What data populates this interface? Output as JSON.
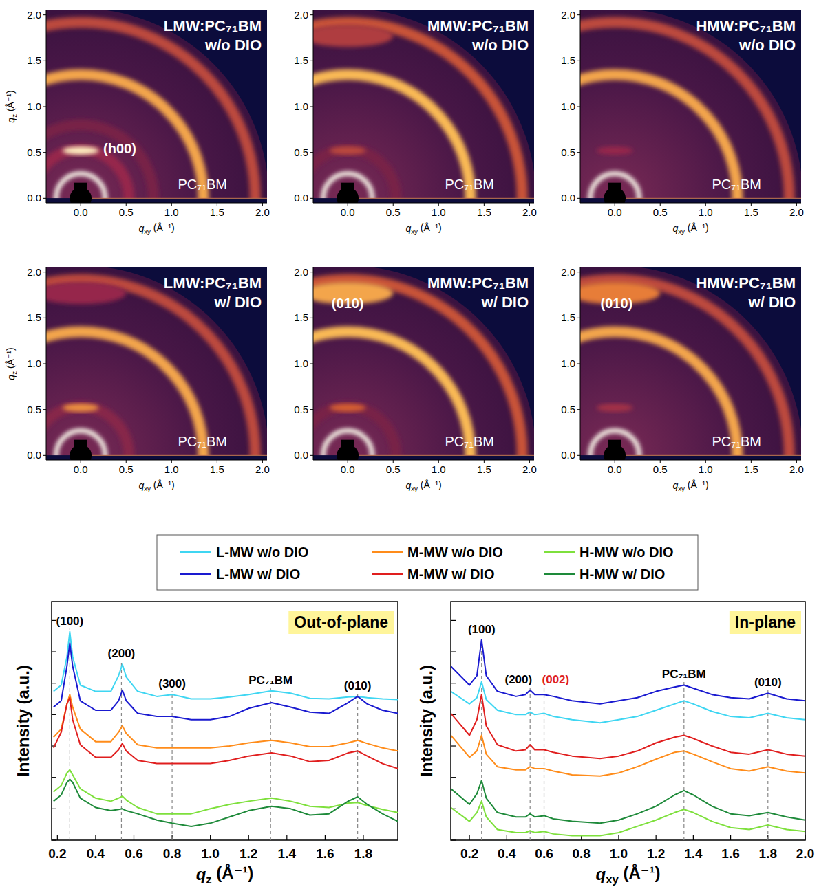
{
  "chart_data": [
    {
      "type": "image",
      "title": "LMW:PC₇₁BM w/o DIO",
      "xlabel": "qxy (Å⁻¹)",
      "ylabel": "qz (Å⁻¹)",
      "xlim": [
        -0.38,
        2.05
      ],
      "ylim": [
        -0.05,
        2.05
      ],
      "xticks": [
        {
          "value": 0,
          "label": "0.0"
        },
        0.5,
        {
          "value": 1,
          "label": "1.0"
        },
        1.5,
        {
          "value": 2,
          "label": "2.0"
        }
      ],
      "yticks": [
        {
          "value": 0,
          "label": "0.0"
        },
        0.5,
        {
          "value": 1,
          "label": "1.0"
        },
        1.5,
        {
          "value": 2,
          "label": "2.0"
        }
      ],
      "rings": [
        {
          "q": 0.27,
          "intensity": 1.0
        },
        {
          "q": 0.53,
          "intensity": 0.3
        },
        {
          "q": 0.8,
          "intensity": 0.2
        },
        {
          "q": 1.35,
          "intensity": 0.75
        },
        {
          "q": 1.92,
          "intensity": 0.45
        }
      ],
      "spots": [
        {
          "q": 0.52,
          "intensity": 0.95
        }
      ],
      "annotations": [
        {
          "text": "(h00)",
          "x": 0.43,
          "y": 0.54
        },
        {
          "text": "PC₇₁BM",
          "x": 1.34,
          "y": 0.15
        }
      ]
    },
    {
      "type": "image",
      "title": "MMW:PC₇₁BM w/o DIO",
      "xlabel": "qxy (Å⁻¹)",
      "xlim": [
        -0.38,
        2.05
      ],
      "ylim": [
        -0.05,
        2.05
      ],
      "xticks": [
        {
          "value": 0,
          "label": "0.0"
        },
        0.5,
        {
          "value": 1,
          "label": "1.0"
        },
        1.5,
        {
          "value": 2,
          "label": "2.0"
        }
      ],
      "yticks": [
        {
          "value": 0,
          "label": "0.0"
        },
        0.5,
        {
          "value": 1,
          "label": "1.0"
        },
        1.5,
        {
          "value": 2,
          "label": "2.0"
        }
      ],
      "rings": [
        {
          "q": 0.27,
          "intensity": 1.0
        },
        {
          "q": 0.53,
          "intensity": 0.2
        },
        {
          "q": 1.35,
          "intensity": 0.8
        },
        {
          "q": 1.92,
          "intensity": 0.5
        }
      ],
      "spots": [
        {
          "q": 0.52,
          "intensity": 0.45
        },
        {
          "q": 1.77,
          "intensity": 0.4
        }
      ],
      "annotations": [
        {
          "text": "PC₇₁BM",
          "x": 1.34,
          "y": 0.15
        }
      ]
    },
    {
      "type": "image",
      "title": "HMW:PC₇₁BM w/o DIO",
      "xlabel": "qxy (Å⁻¹)",
      "xlim": [
        -0.38,
        2.05
      ],
      "ylim": [
        -0.05,
        2.05
      ],
      "xticks": [
        {
          "value": 0,
          "label": "0.0"
        },
        0.5,
        {
          "value": 1,
          "label": "1.0"
        },
        1.5,
        {
          "value": 2,
          "label": "2.0"
        }
      ],
      "yticks": [
        {
          "value": 0,
          "label": "0.0"
        },
        0.5,
        {
          "value": 1,
          "label": "1.0"
        },
        1.5,
        {
          "value": 2,
          "label": "2.0"
        }
      ],
      "rings": [
        {
          "q": 0.27,
          "intensity": 1.0
        },
        {
          "q": 1.35,
          "intensity": 0.75
        },
        {
          "q": 1.92,
          "intensity": 0.45
        }
      ],
      "spots": [
        {
          "q": 0.52,
          "intensity": 0.3
        }
      ],
      "annotations": [
        {
          "text": "PC₇₁BM",
          "x": 1.34,
          "y": 0.15
        }
      ]
    },
    {
      "type": "image",
      "title": "LMW:PC₇₁BM w/ DIO",
      "xlabel": "qxy (Å⁻¹)",
      "ylabel": "qz (Å⁻¹)",
      "xlim": [
        -0.38,
        2.05
      ],
      "ylim": [
        -0.05,
        2.05
      ],
      "xticks": [
        {
          "value": 0,
          "label": "0.0"
        },
        0.5,
        {
          "value": 1,
          "label": "1.0"
        },
        1.5,
        {
          "value": 2,
          "label": "2.0"
        }
      ],
      "yticks": [
        {
          "value": 0,
          "label": "0.0"
        },
        0.5,
        {
          "value": 1,
          "label": "1.0"
        },
        1.5,
        {
          "value": 2,
          "label": "2.0"
        }
      ],
      "rings": [
        {
          "q": 0.27,
          "intensity": 1.0
        },
        {
          "q": 0.53,
          "intensity": 0.25
        },
        {
          "q": 1.35,
          "intensity": 0.75
        },
        {
          "q": 1.92,
          "intensity": 0.45
        }
      ],
      "spots": [
        {
          "q": 0.52,
          "intensity": 0.7
        },
        {
          "q": 1.77,
          "intensity": 0.3
        }
      ],
      "annotations": [
        {
          "text": "PC₇₁BM",
          "x": 1.34,
          "y": 0.15
        }
      ]
    },
    {
      "type": "image",
      "title": "MMW:PC₇₁BM w/ DIO",
      "xlabel": "qxy (Å⁻¹)",
      "xlim": [
        -0.38,
        2.05
      ],
      "ylim": [
        -0.05,
        2.05
      ],
      "xticks": [
        {
          "value": 0,
          "label": "0.0"
        },
        0.5,
        {
          "value": 1,
          "label": "1.0"
        },
        1.5,
        {
          "value": 2,
          "label": "2.0"
        }
      ],
      "yticks": [
        {
          "value": 0,
          "label": "0.0"
        },
        0.5,
        {
          "value": 1,
          "label": "1.0"
        },
        1.5,
        {
          "value": 2,
          "label": "2.0"
        }
      ],
      "rings": [
        {
          "q": 0.27,
          "intensity": 1.0
        },
        {
          "q": 0.53,
          "intensity": 0.2
        },
        {
          "q": 1.35,
          "intensity": 0.8
        },
        {
          "q": 1.92,
          "intensity": 0.5
        }
      ],
      "spots": [
        {
          "q": 0.52,
          "intensity": 0.55
        },
        {
          "q": 1.77,
          "intensity": 0.75
        }
      ],
      "annotations": [
        {
          "text": "(010)",
          "x": 0.0,
          "y": 1.66
        },
        {
          "text": "PC₇₁BM",
          "x": 1.34,
          "y": 0.15
        }
      ]
    },
    {
      "type": "image",
      "title": "HMW:PC₇₁BM w/ DIO",
      "xlabel": "qxy (Å⁻¹)",
      "xlim": [
        -0.38,
        2.05
      ],
      "ylim": [
        -0.05,
        2.05
      ],
      "xticks": [
        {
          "value": 0,
          "label": "0.0"
        },
        0.5,
        {
          "value": 1,
          "label": "1.0"
        },
        1.5,
        {
          "value": 2,
          "label": "2.0"
        }
      ],
      "yticks": [
        {
          "value": 0,
          "label": "0.0"
        },
        0.5,
        {
          "value": 1,
          "label": "1.0"
        },
        1.5,
        {
          "value": 2,
          "label": "2.0"
        }
      ],
      "rings": [
        {
          "q": 0.27,
          "intensity": 1.0
        },
        {
          "q": 1.35,
          "intensity": 0.75
        },
        {
          "q": 1.92,
          "intensity": 0.45
        }
      ],
      "spots": [
        {
          "q": 0.52,
          "intensity": 0.35
        },
        {
          "q": 1.77,
          "intensity": 0.65
        }
      ],
      "annotations": [
        {
          "text": "(010)",
          "x": 0.02,
          "y": 1.66
        },
        {
          "text": "PC₇₁BM",
          "x": 1.34,
          "y": 0.15
        }
      ]
    },
    {
      "type": "line",
      "title": "Out-of-plane",
      "xlabel": "qz (Å⁻¹)",
      "ylabel": "Intensity (a.u.)",
      "xlim": [
        0.17,
        1.98
      ],
      "ylim": [
        0,
        380
      ],
      "xticks": [
        0.2,
        0.4,
        0.6,
        0.8,
        {
          "value": 1,
          "label": "1.0"
        },
        1.2,
        1.4,
        1.6,
        1.8
      ],
      "yticks": [
        0,
        50,
        100,
        150,
        200,
        250,
        300,
        350
      ],
      "tick_labels": "x",
      "legend": "top",
      "x": [
        0.18,
        0.22,
        0.25,
        0.265,
        0.28,
        0.32,
        0.4,
        0.48,
        0.52,
        0.54,
        0.56,
        0.62,
        0.72,
        0.8,
        0.9,
        1.0,
        1.1,
        1.2,
        1.32,
        1.42,
        1.52,
        1.62,
        1.72,
        1.77,
        1.82,
        1.9,
        1.98
      ],
      "series": [
        {
          "name": "L-MW w/o DIO",
          "color": "#3fd6f2",
          "values": [
            237,
            247,
            292,
            332,
            292,
            247,
            237,
            237,
            262,
            280,
            260,
            237,
            229,
            232,
            225,
            225,
            228,
            232,
            238,
            234,
            226,
            225,
            228,
            229,
            227,
            225,
            224
          ]
        },
        {
          "name": "L-MW w/ DIO",
          "color": "#1a1ad0",
          "values": [
            212,
            222,
            277,
            314,
            277,
            222,
            207,
            207,
            222,
            239,
            222,
            202,
            197,
            197,
            192,
            192,
            197,
            210,
            219,
            212,
            204,
            202,
            219,
            229,
            217,
            207,
            202
          ]
        },
        {
          "name": "M-MW w/o DIO",
          "color": "#ff8c1a",
          "values": [
            164,
            177,
            217,
            232,
            212,
            177,
            157,
            157,
            172,
            182,
            170,
            152,
            147,
            147,
            147,
            147,
            150,
            155,
            159,
            155,
            149,
            149,
            155,
            159,
            154,
            147,
            142
          ]
        },
        {
          "name": "M-MW w/ DIO",
          "color": "#e01e1e",
          "values": [
            147,
            172,
            217,
            227,
            192,
            152,
            132,
            132,
            144,
            154,
            142,
            127,
            122,
            122,
            122,
            122,
            127,
            134,
            139,
            134,
            125,
            127,
            139,
            142,
            134,
            122,
            114
          ]
        },
        {
          "name": "H-MW w/o DIO",
          "color": "#7ee03c",
          "values": [
            77,
            87,
            107,
            112,
            104,
            82,
            67,
            62,
            67,
            70,
            64,
            52,
            42,
            42,
            42,
            50,
            57,
            62,
            67,
            62,
            54,
            52,
            59,
            60,
            55,
            49,
            44
          ]
        },
        {
          "name": "H-MW w/ DIO",
          "color": "#1e8a3a",
          "values": [
            62,
            72,
            92,
            97,
            92,
            67,
            52,
            47,
            49,
            50,
            47,
            42,
            32,
            27,
            22,
            27,
            37,
            47,
            54,
            50,
            40,
            42,
            62,
            69,
            57,
            42,
            30
          ]
        }
      ],
      "peaks": [
        {
          "label": "(100)",
          "x": 0.265
        },
        {
          "label": "(200)",
          "x": 0.535
        },
        {
          "label": "(300)",
          "x": 0.8
        },
        {
          "label": "PC₇₁BM",
          "x": 1.315
        },
        {
          "label": "(010)",
          "x": 1.77
        }
      ]
    },
    {
      "type": "line",
      "title": "In-plane",
      "xlabel": "qxy (Å⁻¹)",
      "ylabel": "Intensity (a.u.)",
      "xlim": [
        0.1,
        2.0
      ],
      "ylim": [
        0,
        380
      ],
      "xticks": [
        0.2,
        0.4,
        0.6,
        0.8,
        {
          "value": 1,
          "label": "1.0"
        },
        1.2,
        1.4,
        1.6,
        1.8,
        {
          "value": 2,
          "label": "2.0"
        }
      ],
      "yticks": [
        0,
        50,
        100,
        150,
        200,
        250,
        300,
        350
      ],
      "tick_labels": "x",
      "x": [
        0.1,
        0.2,
        0.24,
        0.265,
        0.29,
        0.35,
        0.45,
        0.5,
        0.525,
        0.55,
        0.6,
        0.65,
        0.75,
        0.9,
        1.0,
        1.1,
        1.2,
        1.3,
        1.35,
        1.4,
        1.5,
        1.6,
        1.7,
        1.8,
        1.9,
        2.0
      ],
      "series": [
        {
          "color": "#3fd6f2",
          "values": [
            237,
            217,
            227,
            252,
            224,
            207,
            200,
            200,
            204,
            200,
            202,
            197,
            192,
            187,
            192,
            197,
            207,
            217,
            222,
            217,
            205,
            197,
            195,
            202,
            195,
            192
          ]
        },
        {
          "color": "#1a1ad0",
          "values": [
            277,
            247,
            262,
            319,
            262,
            237,
            229,
            232,
            239,
            232,
            232,
            229,
            222,
            217,
            222,
            227,
            237,
            244,
            247,
            242,
            232,
            227,
            225,
            234,
            225,
            222
          ]
        },
        {
          "color": "#ff8c1a",
          "values": [
            167,
            132,
            142,
            167,
            137,
            117,
            112,
            112,
            117,
            114,
            114,
            110,
            104,
            102,
            107,
            117,
            129,
            140,
            142,
            137,
            125,
            114,
            110,
            117,
            110,
            107
          ]
        },
        {
          "color": "#e01e1e",
          "values": [
            202,
            167,
            192,
            232,
            182,
            152,
            142,
            144,
            152,
            144,
            144,
            140,
            134,
            130,
            134,
            142,
            155,
            164,
            167,
            162,
            150,
            140,
            137,
            144,
            137,
            134
          ]
        },
        {
          "color": "#7ee03c",
          "values": [
            52,
            30,
            44,
            62,
            37,
            17,
            12,
            12,
            15,
            12,
            14,
            10,
            7,
            7,
            12,
            22,
            32,
            44,
            49,
            44,
            30,
            20,
            17,
            24,
            17,
            14
          ]
        },
        {
          "color": "#1e8a3a",
          "values": [
            82,
            57,
            74,
            95,
            67,
            44,
            37,
            37,
            42,
            37,
            39,
            34,
            30,
            27,
            32,
            42,
            54,
            72,
            79,
            72,
            54,
            42,
            39,
            44,
            37,
            32
          ]
        }
      ],
      "peaks": [
        {
          "label": "(100)",
          "x": 0.265
        },
        {
          "label": "(200)",
          "x": 0.525
        },
        {
          "label": "(002)",
          "x": 0.6,
          "color": "#e01e1e"
        },
        {
          "label": "PC₇₁BM",
          "x": 1.35
        },
        {
          "label": "(010)",
          "x": 1.8
        }
      ]
    }
  ]
}
